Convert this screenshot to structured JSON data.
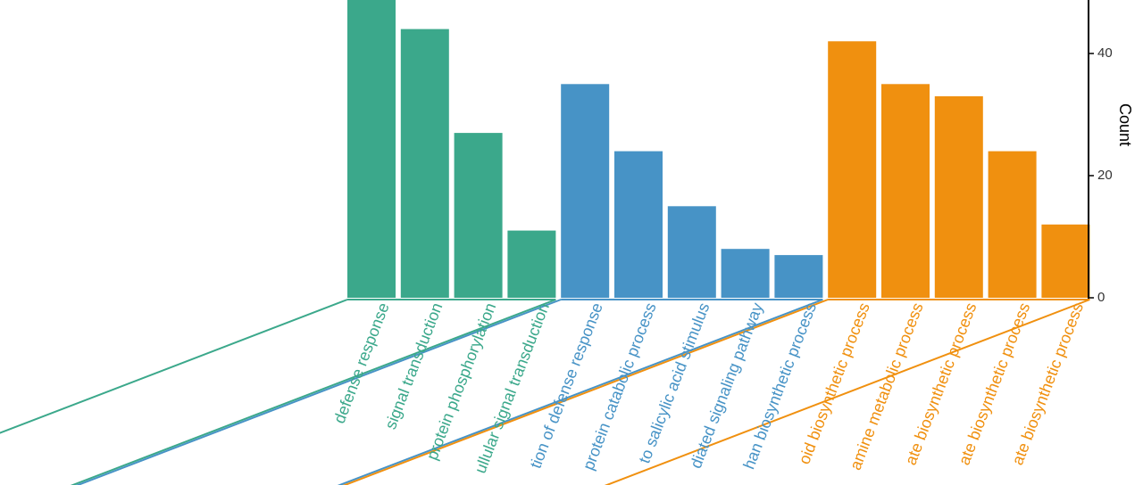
{
  "chart_data": {
    "type": "bar",
    "ylabel": "Count",
    "ylim": [
      0,
      50
    ],
    "yticks": [
      0,
      20,
      40
    ],
    "groups": [
      {
        "color": "#3ba88b",
        "categories": [
          "defense response",
          "signal transduction",
          "protein phosphorylation",
          "ullular signal transduction"
        ],
        "values": [
          50,
          44,
          27,
          11
        ]
      },
      {
        "color": "#4793c6",
        "categories": [
          "tion of defense response",
          "protein catabolic process",
          "to salicylic acid stimulus",
          "diated signaling pathway",
          "han biosynthetic process"
        ],
        "values": [
          35,
          24,
          15,
          8,
          7
        ]
      },
      {
        "color": "#f0900f",
        "categories": [
          "oid biosynthetic process",
          "amine metabolic process",
          "ate biosynthetic process",
          "ate biosynthetic process",
          "ate biosynthetic process"
        ],
        "values": [
          42,
          35,
          33,
          24,
          12
        ]
      }
    ]
  }
}
